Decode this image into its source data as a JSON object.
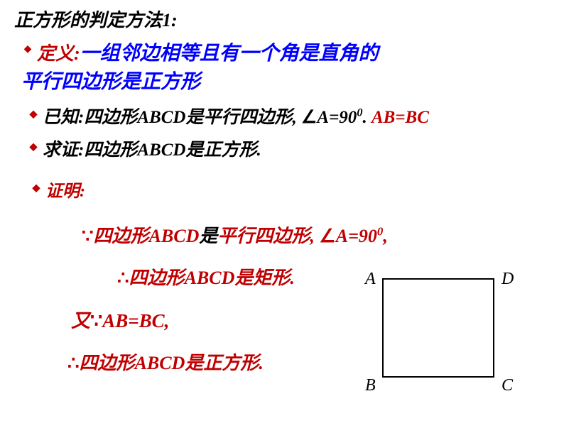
{
  "title": "正方形的判定方法1:",
  "definition": {
    "label": "定义:",
    "body_line1": "一组邻边相等且有一个角是直角的",
    "body_line2": "平行四边形是正方形"
  },
  "given": {
    "label": "已知:",
    "pre": "四边形",
    "abcd": "ABCD",
    "mid": "是平行四边形, ",
    "angle_pre": "∠",
    "angle_var": "A",
    "eq": "=90",
    "sup": "0",
    "dot": ". ",
    "abeq": "AB=BC"
  },
  "prove": {
    "label": "求证:",
    "pre": "四边形",
    "abcd": "ABCD",
    "post": "是正方形."
  },
  "proof_label": "证明:",
  "step1": {
    "sym": "∵",
    "pre": "四边形",
    "abcd": "ABCD",
    "mid_black": "是",
    "mid_red": "平行四边形, ",
    "angle_pre": "∠",
    "angle_var": "A",
    "eq": "=90",
    "sup": "0",
    "comma": ","
  },
  "step2": {
    "sym": "∴",
    "pre": "四边形",
    "abcd": "ABCD",
    "post": "是矩形."
  },
  "step3": {
    "pre": "又",
    "sym": "∵",
    "abeq": "AB=BC",
    "comma": ","
  },
  "step4": {
    "sym": "∴",
    "pre": "四边形",
    "abcd": "ABCD",
    "post": "是正方形."
  },
  "figure": {
    "A": "A",
    "B": "B",
    "C": "C",
    "D": "D"
  }
}
